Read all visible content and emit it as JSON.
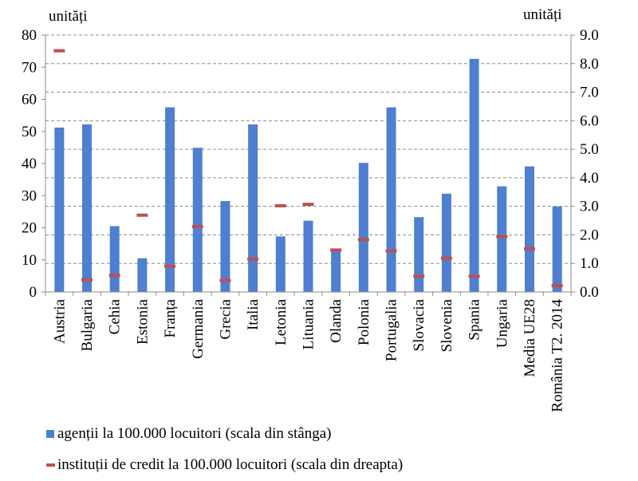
{
  "chart_data": {
    "type": "bar",
    "left_axis_unit": "unități",
    "right_axis_unit": "unități",
    "left_ylim": [
      0,
      80
    ],
    "left_ticks": [
      "0",
      "10",
      "20",
      "30",
      "40",
      "50",
      "60",
      "70",
      "80"
    ],
    "right_ylim": [
      0,
      9
    ],
    "right_ticks": [
      "0.0",
      "1.0",
      "2.0",
      "3.0",
      "4.0",
      "5.0",
      "6.0",
      "7.0",
      "8.0",
      "9.0"
    ],
    "grid": true,
    "categories": [
      "Austria",
      "Bulgaria",
      "Cehia",
      "Estonia",
      "Franța",
      "Germania",
      "Grecia",
      "Italia",
      "Letonia",
      "Lituania",
      "Olanda",
      "Polonia",
      "Portugalia",
      "Slovacia",
      "Slovenia",
      "Spania",
      "Ungaria",
      "Media UE28",
      "România T2. 2014"
    ],
    "series": [
      {
        "name": "agenții la 100.000 locuitori (scala din stânga)",
        "axis": "left",
        "color": "#4e7fd0",
        "values": [
          51.2,
          52.2,
          20.5,
          10.5,
          57.5,
          44.9,
          28.3,
          52.2,
          17.3,
          22.2,
          12.9,
          40.2,
          57.5,
          23.3,
          30.6,
          72.6,
          32.9,
          39.1,
          26.6
        ]
      },
      {
        "name": "instituții de credit la 100.000 locuitori (scala din dreapta)",
        "axis": "right",
        "color": "#c0504d",
        "values": [
          8.45,
          0.42,
          0.58,
          2.69,
          0.9,
          2.29,
          0.4,
          1.15,
          3.02,
          3.07,
          1.47,
          1.83,
          1.44,
          0.55,
          1.18,
          0.55,
          1.94,
          1.51,
          0.22
        ]
      }
    ],
    "legend_position": "bottom-left"
  }
}
